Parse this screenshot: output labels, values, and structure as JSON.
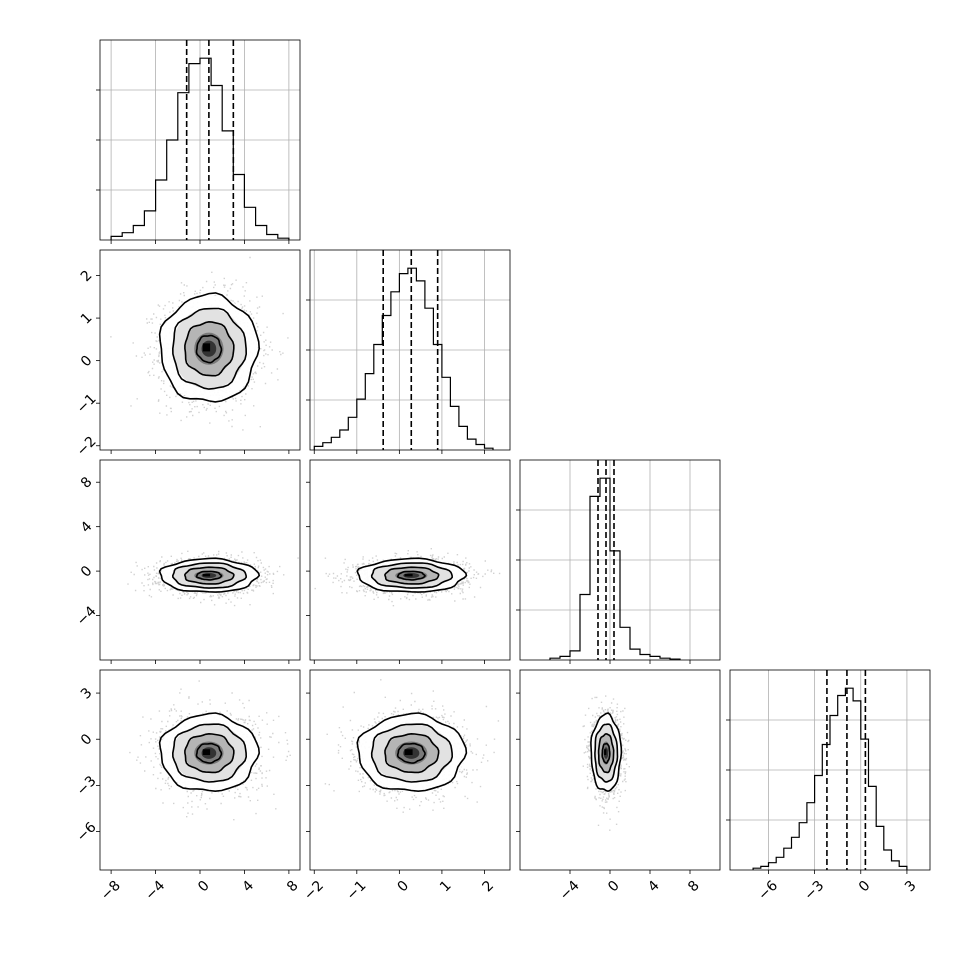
{
  "chart_data": {
    "type": "corner",
    "dimensions": 4,
    "variables": [
      {
        "range": [
          -9,
          9
        ],
        "ticks": [
          -8,
          -4,
          0,
          4,
          8
        ],
        "tick_labels": [
          "−8",
          "−4",
          "0",
          "4",
          "8"
        ],
        "quantiles": [
          -1.2,
          0.8,
          3.0
        ],
        "histogram": {
          "edges": [
            -8,
            -7,
            -6,
            -5,
            -4,
            -3,
            -2,
            -1,
            0,
            1,
            2,
            3,
            4,
            5,
            6,
            7,
            8
          ],
          "counts": [
            0.02,
            0.04,
            0.08,
            0.16,
            0.33,
            0.55,
            0.81,
            0.97,
            1.0,
            0.85,
            0.6,
            0.36,
            0.18,
            0.08,
            0.03,
            0.01
          ]
        }
      },
      {
        "range": [
          -2.1,
          2.6
        ],
        "ticks": [
          -2,
          -1,
          0,
          1,
          2
        ],
        "tick_labels": [
          "−2",
          "−1",
          "0",
          "1",
          "2"
        ],
        "quantiles": [
          -0.38,
          0.28,
          0.9
        ],
        "histogram": {
          "edges": [
            -2.0,
            -1.8,
            -1.6,
            -1.4,
            -1.2,
            -1.0,
            -0.8,
            -0.6,
            -0.4,
            -0.2,
            0.0,
            0.2,
            0.4,
            0.6,
            0.8,
            1.0,
            1.2,
            1.4,
            1.6,
            1.8,
            2.0,
            2.2
          ],
          "counts": [
            0.02,
            0.04,
            0.07,
            0.11,
            0.18,
            0.28,
            0.42,
            0.58,
            0.74,
            0.87,
            0.97,
            1.0,
            0.93,
            0.78,
            0.58,
            0.4,
            0.24,
            0.13,
            0.06,
            0.03,
            0.01
          ]
        }
      },
      {
        "range": [
          -9,
          11
        ],
        "ticks": [
          -4,
          0,
          4,
          8
        ],
        "tick_labels": [
          "−4",
          "0",
          "4",
          "8"
        ],
        "quantiles": [
          -1.2,
          -0.4,
          0.4
        ],
        "histogram": {
          "edges": [
            -6,
            -5,
            -4,
            -3,
            -2,
            -1,
            0,
            1,
            2,
            3,
            4,
            5,
            6,
            7
          ],
          "counts": [
            0.01,
            0.02,
            0.05,
            0.36,
            0.9,
            1.0,
            0.6,
            0.18,
            0.06,
            0.03,
            0.02,
            0.01,
            0.005
          ]
        },
        "y_range": [
          -8,
          10
        ],
        "y_ticks": [
          -4,
          0,
          4,
          8
        ],
        "y_tick_labels": [
          "−4",
          "0",
          "4",
          "8"
        ]
      },
      {
        "range": [
          -8.5,
          4.5
        ],
        "ticks": [
          -6,
          -3,
          0,
          3
        ],
        "tick_labels": [
          "−6",
          "−3",
          "0",
          "3"
        ],
        "quantiles": [
          -2.2,
          -0.9,
          0.3
        ],
        "histogram": {
          "edges": [
            -7.0,
            -6.5,
            -6.0,
            -5.5,
            -5.0,
            -4.5,
            -4.0,
            -3.5,
            -3.0,
            -2.5,
            -2.0,
            -1.5,
            -1.0,
            -0.5,
            0.0,
            0.5,
            1.0,
            1.5,
            2.0,
            2.5,
            3.0
          ],
          "counts": [
            0.01,
            0.02,
            0.04,
            0.07,
            0.12,
            0.18,
            0.26,
            0.37,
            0.52,
            0.69,
            0.85,
            0.96,
            1.0,
            0.93,
            0.72,
            0.46,
            0.24,
            0.11,
            0.05,
            0.02
          ]
        },
        "y_range": [
          -8.5,
          4.5
        ],
        "y_ticks": [
          -6,
          -3,
          0,
          3
        ],
        "y_tick_labels": [
          "−6",
          "−3",
          "0",
          "3"
        ]
      }
    ],
    "pairs": [
      {
        "row": 1,
        "col": 0,
        "center": [
          0.8,
          0.28
        ],
        "sd": [
          2.2,
          0.63
        ],
        "rho": 0.0
      },
      {
        "row": 2,
        "col": 0,
        "center": [
          0.8,
          -0.4
        ],
        "sd": [
          2.2,
          0.75
        ],
        "rho": 0.0
      },
      {
        "row": 2,
        "col": 1,
        "center": [
          0.28,
          -0.4
        ],
        "sd": [
          0.63,
          0.75
        ],
        "rho": 0.0
      },
      {
        "row": 3,
        "col": 0,
        "center": [
          0.8,
          -0.9
        ],
        "sd": [
          2.2,
          1.25
        ],
        "rho": 0.0
      },
      {
        "row": 3,
        "col": 1,
        "center": [
          0.28,
          -0.9
        ],
        "sd": [
          0.63,
          1.25
        ],
        "rho": 0.0
      },
      {
        "row": 3,
        "col": 2,
        "center": [
          -0.4,
          -0.9
        ],
        "sd": [
          0.75,
          1.25
        ],
        "rho": 0.0
      }
    ],
    "contour_levels_sigma": [
      0.5,
      1.0,
      1.5,
      2.0
    ],
    "grid": true
  }
}
